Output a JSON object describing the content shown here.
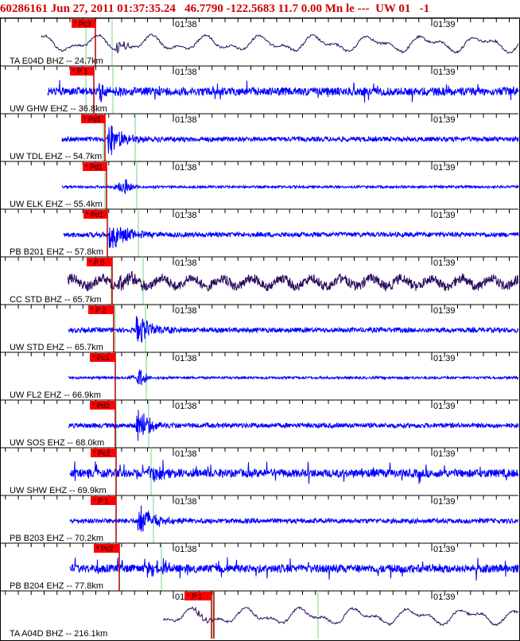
{
  "header": "60286161 Jun 27, 2011 01:37:35.24   46.7790 -122.5683 11.7 0.00 Mn le ---  UW 01   -1",
  "time_labels": [
    "01:38",
    "01:39"
  ],
  "colors": {
    "header": "#d00000",
    "blue_trace": "#0000ff",
    "dark_trace": "#2a0a5e",
    "pick": "#ff0000",
    "pick_line": "#b00000",
    "green_line": "#7fd07f",
    "frame": "#000000",
    "label": "#000000"
  },
  "traces": [
    {
      "label": "TA E04D BHZ -- 24.7km",
      "pick": "* Pc3",
      "color": "dark",
      "style": "long"
    },
    {
      "label": "UW GHW EHZ -- 36.8km",
      "pick": "* P 1",
      "color": "blue",
      "style": "noisy"
    },
    {
      "label": "UW TDL EHZ -- 54.7km",
      "pick": "* Pd1",
      "color": "blue",
      "style": "burst"
    },
    {
      "label": "UW ELK EHZ -- 55.4km",
      "pick": "* Pd1",
      "color": "blue",
      "style": "quiet"
    },
    {
      "label": "PB B201 EHZ -- 57.8km",
      "pick": "* Pd1",
      "color": "blue",
      "style": "burst"
    },
    {
      "label": "CC STD BHZ -- 65.7km",
      "pick": "* P 0",
      "color": "dark",
      "style": "dense"
    },
    {
      "label": "UW STD EHZ -- 65.7km",
      "pick": "* P 2",
      "color": "blue",
      "style": "burst"
    },
    {
      "label": "UW FL2 EHZ -- 66.9km",
      "pick": "* Pc1",
      "color": "blue",
      "style": "quiet"
    },
    {
      "label": "UW SOS EHZ -- 68.0km",
      "pick": "* Pd2",
      "color": "blue",
      "style": "burst"
    },
    {
      "label": "UW SHW EHZ -- 69.9km",
      "pick": "* Pc2",
      "color": "blue",
      "style": "noisy"
    },
    {
      "label": "PB B203 EHZ -- 70.2km",
      "pick": "* P 1",
      "color": "blue",
      "style": "burst"
    },
    {
      "label": "PB B204 EHZ -- 77.8km",
      "pick": "* Pc2",
      "color": "blue",
      "style": "noisy"
    },
    {
      "label": "TA A04D BHZ -- 216.1km",
      "pick": "* P 1",
      "color": "dark",
      "style": "long"
    }
  ]
}
